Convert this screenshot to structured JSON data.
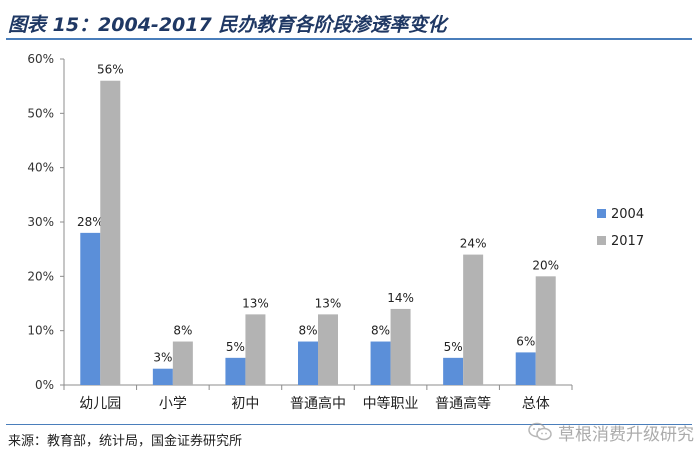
{
  "header": {
    "title": "图表 15：2004-2017 民办教育各阶段渗透率变化"
  },
  "footer": {
    "source": "来源：教育部，统计局，国金证券研究所",
    "watermark": "草根消费升级研究"
  },
  "icons": {
    "watermark_icon": "wechat-icon"
  },
  "colors": {
    "series_2004": "#5b8fd9",
    "series_2017": "#b3b3b3",
    "title": "#1f3864",
    "rule": "#4a7ebb"
  },
  "chart_data": {
    "type": "bar",
    "categories": [
      "幼儿园",
      "小学",
      "初中",
      "普通高中",
      "中等职业",
      "普通高等",
      "总体"
    ],
    "series": [
      {
        "name": "2004",
        "values": [
          28,
          3,
          5,
          8,
          8,
          5,
          6
        ],
        "labels": [
          "28%",
          "3%",
          "5%",
          "8%",
          "8%",
          "5%",
          "6%"
        ]
      },
      {
        "name": "2017",
        "values": [
          56,
          8,
          13,
          13,
          14,
          24,
          20
        ],
        "labels": [
          "56%",
          "8%",
          "13%",
          "13%",
          "14%",
          "24%",
          "20%"
        ]
      }
    ],
    "y_ticks": [
      "0%",
      "10%",
      "20%",
      "30%",
      "40%",
      "50%",
      "60%"
    ],
    "ylim": [
      0,
      60
    ],
    "grid": false,
    "legend_position": "right"
  }
}
